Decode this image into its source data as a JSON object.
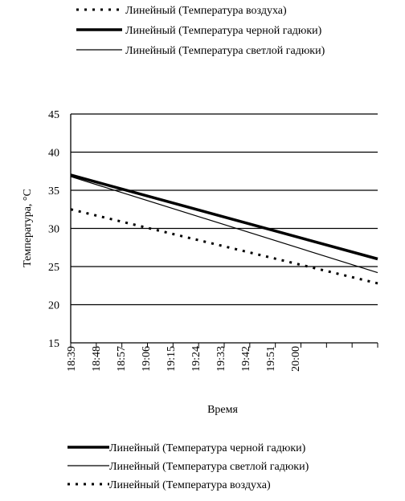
{
  "chart_data": {
    "type": "line",
    "title": "",
    "xlabel": "Время",
    "ylabel": "Температура, °C",
    "ylim": [
      15,
      45
    ],
    "yticks": [
      15,
      20,
      25,
      30,
      35,
      40,
      45
    ],
    "xticks": [
      "18:39",
      "18:48",
      "18:57",
      "19:06",
      "19:15",
      "19:24",
      "19:33",
      "19:42",
      "19:51",
      "20:00"
    ],
    "x_range": [
      "18:39",
      "20:30"
    ],
    "grid": "horizontal major lines",
    "series": [
      {
        "name": "Линейный (Температура черной гадюки)",
        "style": "thick solid",
        "color": "#000000",
        "x": [
          "18:39",
          "20:30"
        ],
        "values": [
          37.0,
          26.0
        ]
      },
      {
        "name": "Линейный (Температура светлой гадюки)",
        "style": "thin solid",
        "color": "#000000",
        "x": [
          "18:39",
          "20:30"
        ],
        "values": [
          36.8,
          24.2
        ]
      },
      {
        "name": "Линейный (Температура воздуха)",
        "style": "dotted",
        "color": "#000000",
        "x": [
          "18:39",
          "20:30"
        ],
        "values": [
          32.5,
          22.8
        ]
      }
    ],
    "legends": [
      {
        "position": "top",
        "entries": [
          {
            "label": "Линейный (Температура воздуха)",
            "style": "dotted"
          },
          {
            "label": "Линейный (Температура черной гадюки)",
            "style": "thick solid"
          },
          {
            "label": "Линейный (Температура светлой гадюки)",
            "style": "thin solid"
          }
        ]
      },
      {
        "position": "bottom",
        "entries": [
          {
            "label": "Линейный (Температура черной гадюки)",
            "style": "thick solid"
          },
          {
            "label": "Линейный (Температура светлой гадюки)",
            "style": "thin solid"
          },
          {
            "label": "Линейный (Температура воздуха)",
            "style": "dotted"
          }
        ]
      }
    ]
  }
}
